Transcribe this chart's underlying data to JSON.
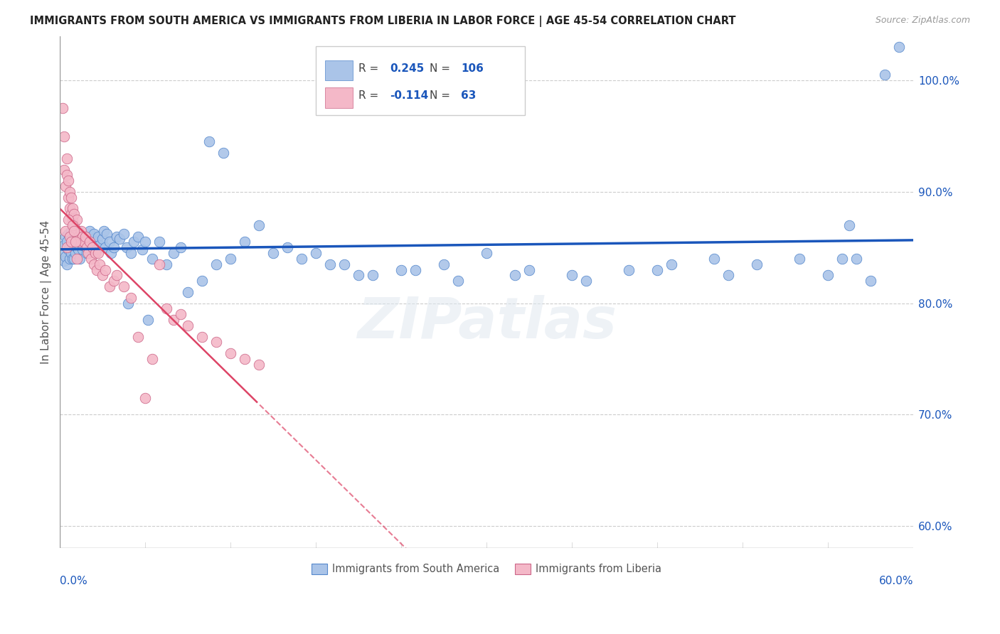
{
  "title": "IMMIGRANTS FROM SOUTH AMERICA VS IMMIGRANTS FROM LIBERIA IN LABOR FORCE | AGE 45-54 CORRELATION CHART",
  "source": "Source: ZipAtlas.com",
  "ylabel": "In Labor Force | Age 45-54",
  "y_ticks": [
    60.0,
    70.0,
    80.0,
    90.0,
    100.0
  ],
  "x_range": [
    0.0,
    60.0
  ],
  "y_range": [
    58.0,
    104.0
  ],
  "legend_blue_r": "0.245",
  "legend_blue_n": "106",
  "legend_pink_r": "-0.114",
  "legend_pink_n": "63",
  "blue_color": "#aac4e8",
  "blue_edge_color": "#5588cc",
  "pink_color": "#f4b8c8",
  "pink_edge_color": "#cc6688",
  "blue_line_color": "#1a56bb",
  "pink_line_color": "#dd4466",
  "watermark": "ZIPatlas",
  "blue_scatter_x": [
    0.2,
    0.3,
    0.3,
    0.4,
    0.4,
    0.5,
    0.5,
    0.6,
    0.6,
    0.7,
    0.7,
    0.8,
    0.8,
    0.8,
    0.9,
    0.9,
    1.0,
    1.0,
    1.0,
    1.1,
    1.1,
    1.2,
    1.2,
    1.3,
    1.3,
    1.4,
    1.4,
    1.5,
    1.5,
    1.6,
    1.6,
    1.7,
    1.8,
    1.9,
    2.0,
    2.0,
    2.1,
    2.2,
    2.3,
    2.4,
    2.5,
    2.6,
    2.7,
    2.8,
    3.0,
    3.1,
    3.2,
    3.3,
    3.5,
    3.6,
    3.8,
    4.0,
    4.2,
    4.5,
    4.7,
    5.0,
    5.2,
    5.5,
    5.8,
    6.0,
    6.5,
    7.0,
    7.5,
    8.0,
    8.5,
    9.0,
    10.0,
    11.0,
    12.0,
    13.0,
    15.0,
    17.0,
    19.0,
    21.0,
    24.0,
    27.0,
    30.0,
    33.0,
    36.0,
    40.0,
    43.0,
    46.0,
    49.0,
    52.0,
    54.0,
    56.0,
    10.5,
    11.5,
    14.0,
    16.0,
    18.0,
    20.0,
    22.0,
    25.0,
    28.0,
    32.0,
    37.0,
    42.0,
    47.0,
    55.0,
    57.0,
    58.0,
    55.5,
    59.0,
    4.8,
    6.2
  ],
  "blue_scatter_y": [
    84.5,
    85.2,
    83.8,
    86.0,
    84.2,
    85.5,
    83.5,
    86.2,
    84.8,
    85.0,
    84.0,
    86.5,
    85.8,
    84.5,
    85.5,
    84.0,
    86.0,
    85.2,
    84.0,
    85.8,
    84.5,
    86.2,
    85.0,
    86.5,
    84.8,
    85.2,
    84.0,
    86.0,
    85.5,
    84.8,
    85.2,
    86.0,
    85.5,
    84.5,
    86.0,
    85.0,
    86.5,
    85.2,
    85.8,
    86.2,
    85.5,
    84.8,
    86.0,
    85.2,
    85.8,
    86.5,
    85.0,
    86.2,
    85.5,
    84.5,
    85.0,
    86.0,
    85.8,
    86.2,
    85.0,
    84.5,
    85.5,
    86.0,
    84.8,
    85.5,
    84.0,
    85.5,
    83.5,
    84.5,
    85.0,
    81.0,
    82.0,
    83.5,
    84.0,
    85.5,
    84.5,
    84.0,
    83.5,
    82.5,
    83.0,
    83.5,
    84.5,
    83.0,
    82.5,
    83.0,
    83.5,
    84.0,
    83.5,
    84.0,
    82.5,
    84.0,
    94.5,
    93.5,
    87.0,
    85.0,
    84.5,
    83.5,
    82.5,
    83.0,
    82.0,
    82.5,
    82.0,
    83.0,
    82.5,
    84.0,
    82.0,
    100.5,
    87.0,
    103.0,
    80.0,
    78.5
  ],
  "pink_scatter_x": [
    0.2,
    0.3,
    0.3,
    0.4,
    0.5,
    0.5,
    0.6,
    0.6,
    0.7,
    0.7,
    0.8,
    0.8,
    0.9,
    0.9,
    1.0,
    1.0,
    1.1,
    1.2,
    1.3,
    1.4,
    1.5,
    1.6,
    1.7,
    1.8,
    1.9,
    2.0,
    2.1,
    2.2,
    2.3,
    2.4,
    2.5,
    2.6,
    2.8,
    3.0,
    3.2,
    3.5,
    3.8,
    4.0,
    4.5,
    5.0,
    5.5,
    6.0,
    6.5,
    7.0,
    7.5,
    8.0,
    8.5,
    9.0,
    10.0,
    11.0,
    12.0,
    13.0,
    14.0,
    0.4,
    0.5,
    0.6,
    0.7,
    0.8,
    0.9,
    1.0,
    1.1,
    1.2,
    2.7
  ],
  "pink_scatter_y": [
    97.5,
    95.0,
    92.0,
    90.5,
    91.5,
    93.0,
    89.5,
    91.0,
    88.5,
    90.0,
    88.0,
    89.5,
    87.5,
    88.5,
    87.0,
    88.0,
    86.5,
    87.5,
    86.0,
    85.5,
    86.5,
    86.0,
    85.5,
    86.0,
    85.0,
    84.5,
    85.5,
    84.0,
    85.0,
    83.5,
    84.5,
    83.0,
    83.5,
    82.5,
    83.0,
    81.5,
    82.0,
    82.5,
    81.5,
    80.5,
    77.0,
    71.5,
    75.0,
    83.5,
    79.5,
    78.5,
    79.0,
    78.0,
    77.0,
    76.5,
    75.5,
    75.0,
    74.5,
    86.5,
    85.0,
    87.5,
    86.0,
    85.5,
    87.0,
    86.5,
    85.5,
    84.0,
    84.5
  ]
}
